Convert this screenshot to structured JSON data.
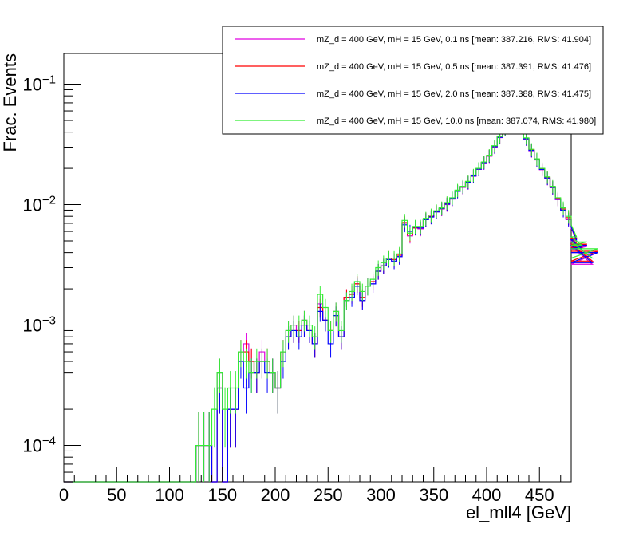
{
  "chart_data": {
    "type": "histogram-step",
    "xlabel": "el_mll4 [GeV]",
    "ylabel": "Frac. Events",
    "xlim": [
      0,
      480
    ],
    "ylim": [
      5e-05,
      0.18
    ],
    "yscale": "log",
    "legend_position": "top-right",
    "x_ticks": [
      {
        "value": 0,
        "label": "0"
      },
      {
        "value": 50,
        "label": "50"
      },
      {
        "value": 100,
        "label": "100"
      },
      {
        "value": 150,
        "label": "150"
      },
      {
        "value": 200,
        "label": "200"
      },
      {
        "value": 250,
        "label": "250"
      },
      {
        "value": 300,
        "label": "300"
      },
      {
        "value": 350,
        "label": "350"
      },
      {
        "value": 400,
        "label": "400"
      },
      {
        "value": 450,
        "label": "450"
      }
    ],
    "y_ticks": [
      {
        "value": 0.1,
        "base": "10",
        "exp": "−1"
      },
      {
        "value": 0.01,
        "base": "10",
        "exp": "−2"
      },
      {
        "value": 0.001,
        "base": "10",
        "exp": "−3"
      },
      {
        "value": 0.0001,
        "base": "10",
        "exp": "−4"
      }
    ],
    "bin_width": 5,
    "bin_start": 125,
    "series": [
      {
        "name": "mZ_d = 400 GeV, mH = 15 GeV, 0.1 ns [mean: 387.216, RMS: 41.904]",
        "color": "#e000e0",
        "values": [
          0.0001,
          0.0001,
          0.0001,
          0,
          0.0004,
          0,
          0.0002,
          0.0002,
          0.0006,
          0.0007,
          0.0005,
          0.0004,
          0.0006,
          0.0005,
          0.0004,
          0.0003,
          0.0006,
          0.0009,
          0.001,
          0.0009,
          0.0011,
          0.0009,
          0.0007,
          0.0015,
          0.0011,
          0.0009,
          0.0013,
          0.0008,
          0.0017,
          0.0018,
          0.0022,
          0.0016,
          0.0021,
          0.0022,
          0.0028,
          0.0031,
          0.0035,
          0.0034,
          0.0037,
          0.007,
          0.0055,
          0.0064,
          0.0063,
          0.0075,
          0.0079,
          0.0087,
          0.0092,
          0.01,
          0.0111,
          0.0129,
          0.0139,
          0.0152,
          0.0172,
          0.0196,
          0.0222,
          0.0252,
          0.03,
          0.036,
          0.042,
          0.05,
          0.058,
          0.045,
          0.035,
          0.028,
          0.0235,
          0.0195,
          0.0165,
          0.0138,
          0.011,
          0.009,
          0.0075,
          0.0064,
          0.005,
          0.0042,
          0.0045,
          0.0032,
          0.004
        ]
      },
      {
        "name": "mZ_d = 400 GeV, mH = 15 GeV, 0.5 ns [mean: 387.391, RMS: 41.476]",
        "color": "#ff0000",
        "values": [
          0.0001,
          0.0001,
          0.0001,
          0,
          0.0003,
          0,
          0.0002,
          0.0002,
          0.0006,
          0.0006,
          0.0005,
          0.0004,
          0.0005,
          0.0005,
          0.0004,
          0.0003,
          0.0006,
          0.0008,
          0.0009,
          0.0009,
          0.001,
          0.0009,
          0.0007,
          0.0014,
          0.0011,
          0.0009,
          0.0012,
          0.0008,
          0.0017,
          0.0018,
          0.0022,
          0.0017,
          0.0021,
          0.0023,
          0.0028,
          0.0031,
          0.0036,
          0.0035,
          0.0038,
          0.0071,
          0.0056,
          0.0064,
          0.0064,
          0.0076,
          0.008,
          0.0088,
          0.0093,
          0.0102,
          0.0112,
          0.013,
          0.014,
          0.0154,
          0.0174,
          0.0198,
          0.0224,
          0.0255,
          0.0305,
          0.0365,
          0.0425,
          0.0505,
          0.0585,
          0.0455,
          0.0355,
          0.0285,
          0.0238,
          0.0198,
          0.0168,
          0.014,
          0.0112,
          0.0092,
          0.0078,
          0.0066,
          0.0052,
          0.0044,
          0.0047,
          0.0034,
          0.0041
        ]
      },
      {
        "name": "mZ_d = 400 GeV, mH = 15 GeV, 2.0 ns [mean: 387.388, RMS: 41.475]",
        "color": "#0000ff",
        "values": [
          0.0001,
          0.0001,
          0.0001,
          0,
          0.0003,
          0,
          0.0002,
          0.0002,
          0.0005,
          0.0003,
          0.0004,
          0.0004,
          0.0005,
          0.0004,
          0.0004,
          0.0003,
          0.0005,
          0.0008,
          0.0009,
          0.0008,
          0.001,
          0.0009,
          0.0007,
          0.0013,
          0.0011,
          0.0007,
          0.0012,
          0.0008,
          0.0016,
          0.0017,
          0.0021,
          0.0016,
          0.0021,
          0.0022,
          0.0028,
          0.0031,
          0.0035,
          0.0034,
          0.0037,
          0.0068,
          0.006,
          0.0065,
          0.0064,
          0.0075,
          0.0079,
          0.0087,
          0.0093,
          0.0101,
          0.0112,
          0.0129,
          0.014,
          0.0153,
          0.0173,
          0.0197,
          0.0223,
          0.0254,
          0.0303,
          0.0362,
          0.0422,
          0.0502,
          0.0582,
          0.0452,
          0.0352,
          0.0282,
          0.0236,
          0.0196,
          0.0166,
          0.0139,
          0.0111,
          0.009,
          0.0076,
          0.0065,
          0.0051,
          0.0043,
          0.0046,
          0.0033,
          0.004
        ]
      },
      {
        "name": "mZ_d = 400 GeV, mH = 15 GeV, 10.0 ns [mean: 387.074, RMS: 41.980]",
        "color": "#33ee33",
        "values": [
          0.0001,
          0.0001,
          0.0001,
          0.0002,
          0.0004,
          0.0002,
          0.0003,
          0.0003,
          0.0006,
          0.0005,
          0.0004,
          0.0005,
          0.0005,
          0.0005,
          0.0004,
          0.0003,
          0.0006,
          0.0009,
          0.001,
          0.001,
          0.0011,
          0.001,
          0.0008,
          0.0018,
          0.0014,
          0.0009,
          0.0013,
          0.0009,
          0.0016,
          0.0019,
          0.0023,
          0.0019,
          0.0021,
          0.0024,
          0.003,
          0.0033,
          0.0036,
          0.0036,
          0.0039,
          0.0074,
          0.0058,
          0.0066,
          0.0066,
          0.0077,
          0.0082,
          0.0089,
          0.0094,
          0.0104,
          0.0114,
          0.0132,
          0.0142,
          0.0156,
          0.0176,
          0.02,
          0.0226,
          0.0257,
          0.0308,
          0.0368,
          0.0428,
          0.0508,
          0.0588,
          0.0458,
          0.0358,
          0.0288,
          0.024,
          0.02,
          0.017,
          0.0142,
          0.0114,
          0.0094,
          0.008,
          0.0068,
          0.0054,
          0.0046,
          0.0049,
          0.0036,
          0.0043
        ]
      }
    ]
  }
}
